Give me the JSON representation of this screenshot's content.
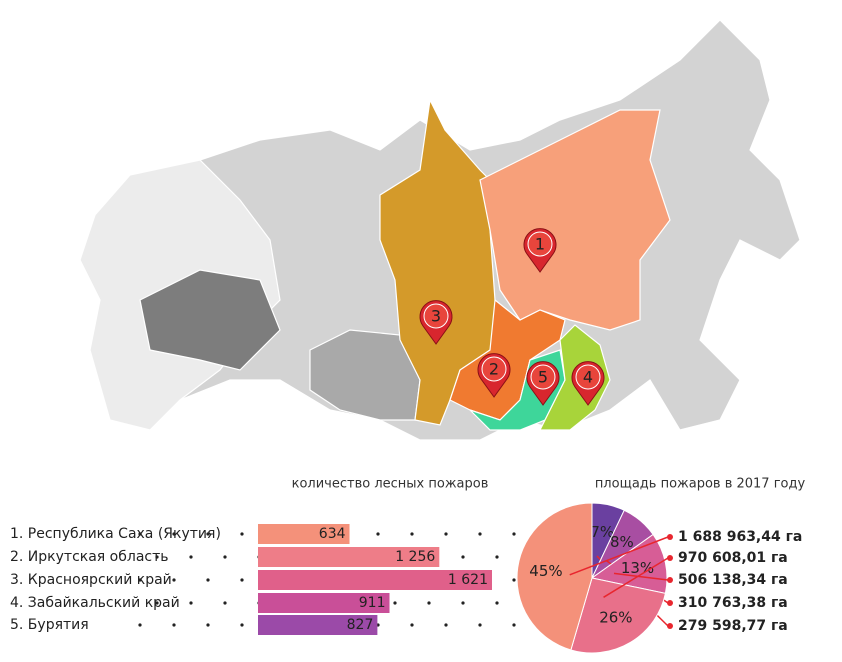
{
  "map": {
    "pins": [
      "1",
      "2",
      "3",
      "4",
      "5"
    ]
  },
  "chart_data": [
    {
      "type": "bar",
      "title": "количество лесных пожаров",
      "categories": [
        "1. Республика Саха (Якутия)",
        "2. Иркутская область",
        "3. Красноярский край",
        "4. Забайкальский край",
        "5. Бурятия"
      ],
      "values": [
        634,
        1256,
        1621,
        911,
        827
      ],
      "value_labels": [
        "634",
        "1 256",
        "1 621",
        "911",
        "827"
      ],
      "colors": [
        "#f4917a",
        "#ee7d88",
        "#e0608a",
        "#c94f98",
        "#9b4aa8"
      ]
    },
    {
      "type": "pie",
      "title": "площадь пожаров в 2017 году",
      "values": [
        45,
        26,
        13,
        8,
        7
      ],
      "value_labels": [
        "45%",
        "26%",
        "13%",
        "8%",
        "7%"
      ],
      "labels": [
        "1 688 963,44 га",
        "970 608,01 га",
        "506 138,34 га",
        "310 763,38 га",
        "279 598,77 га"
      ],
      "colors": [
        "#f4917a",
        "#e8708a",
        "#d75d96",
        "#a84ea2",
        "#6a40a0"
      ]
    }
  ]
}
